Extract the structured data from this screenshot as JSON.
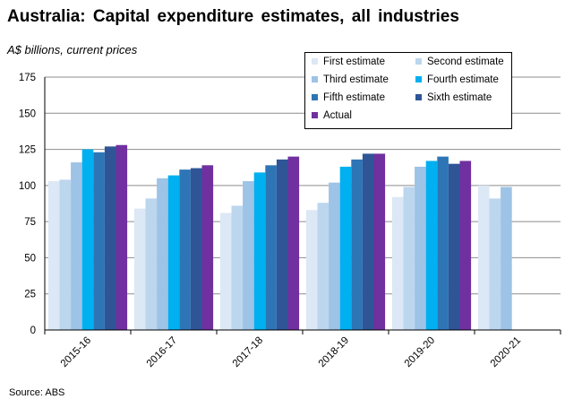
{
  "title": "Australia:  Capital  expenditure estimates,  all industries",
  "subtitle": "A$ billions, current prices",
  "source": "Source: ABS",
  "chart_data": {
    "type": "bar",
    "categories": [
      "2015-16",
      "2016-17",
      "2017-18",
      "2018-19",
      "2019-20",
      "2020-21"
    ],
    "ylim": [
      0,
      175
    ],
    "yticks": [
      "0",
      "25",
      "50",
      "75",
      "100",
      "125",
      "150",
      "175"
    ],
    "grid": true,
    "legend_position": "top-right",
    "series": [
      {
        "name": "First estimate",
        "color": "#dce8f5",
        "values": [
          103,
          84,
          81,
          83,
          92,
          100
        ]
      },
      {
        "name": "Second estimate",
        "color": "#bcd6ee",
        "values": [
          104,
          91,
          86,
          88,
          99,
          91
        ]
      },
      {
        "name": "Third estimate",
        "color": "#9dc3e6",
        "values": [
          116,
          105,
          103,
          102,
          113,
          99
        ]
      },
      {
        "name": "Fourth estimate",
        "color": "#00b0f0",
        "values": [
          125,
          107,
          109,
          113,
          117,
          null
        ]
      },
      {
        "name": "Fifth estimate",
        "color": "#2e75b6",
        "values": [
          123,
          111,
          114,
          118,
          120,
          null
        ]
      },
      {
        "name": "Sixth estimate",
        "color": "#2f5597",
        "values": [
          127,
          112,
          118,
          122,
          115,
          null
        ]
      },
      {
        "name": "Actual",
        "color": "#7030a0",
        "values": [
          128,
          114,
          120,
          122,
          117,
          null
        ]
      }
    ]
  }
}
